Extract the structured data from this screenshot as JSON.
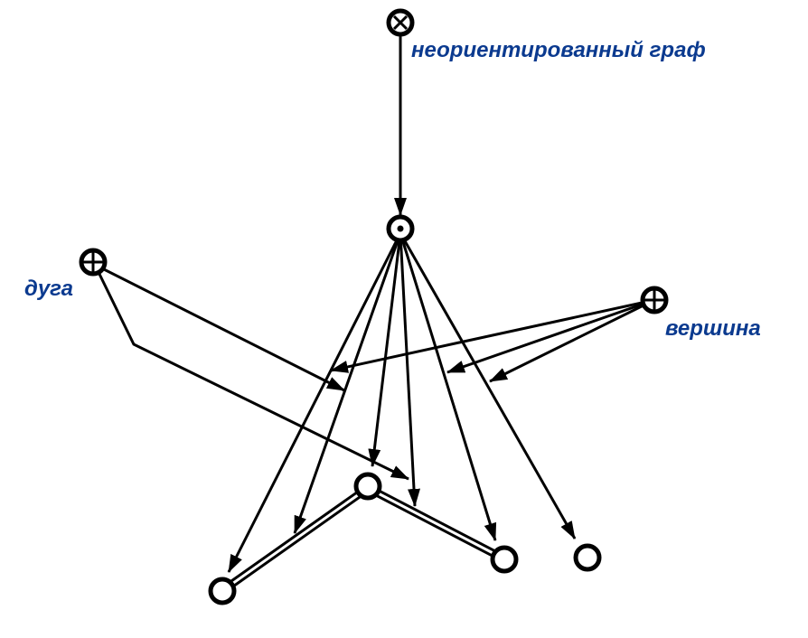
{
  "labels": {
    "graph": "неориентированный граф",
    "arc": "дуга",
    "vertex": "вершина"
  },
  "colors": {
    "label": "#0b3a8f",
    "stroke": "#000000"
  },
  "node_icons": {
    "graph_class": "circled-times-icon",
    "graph_instance": "circled-dot-icon",
    "arc_class": "circled-plus-icon",
    "vertex_class": "circled-plus-icon",
    "vertex_nodes": "ring-icon"
  }
}
